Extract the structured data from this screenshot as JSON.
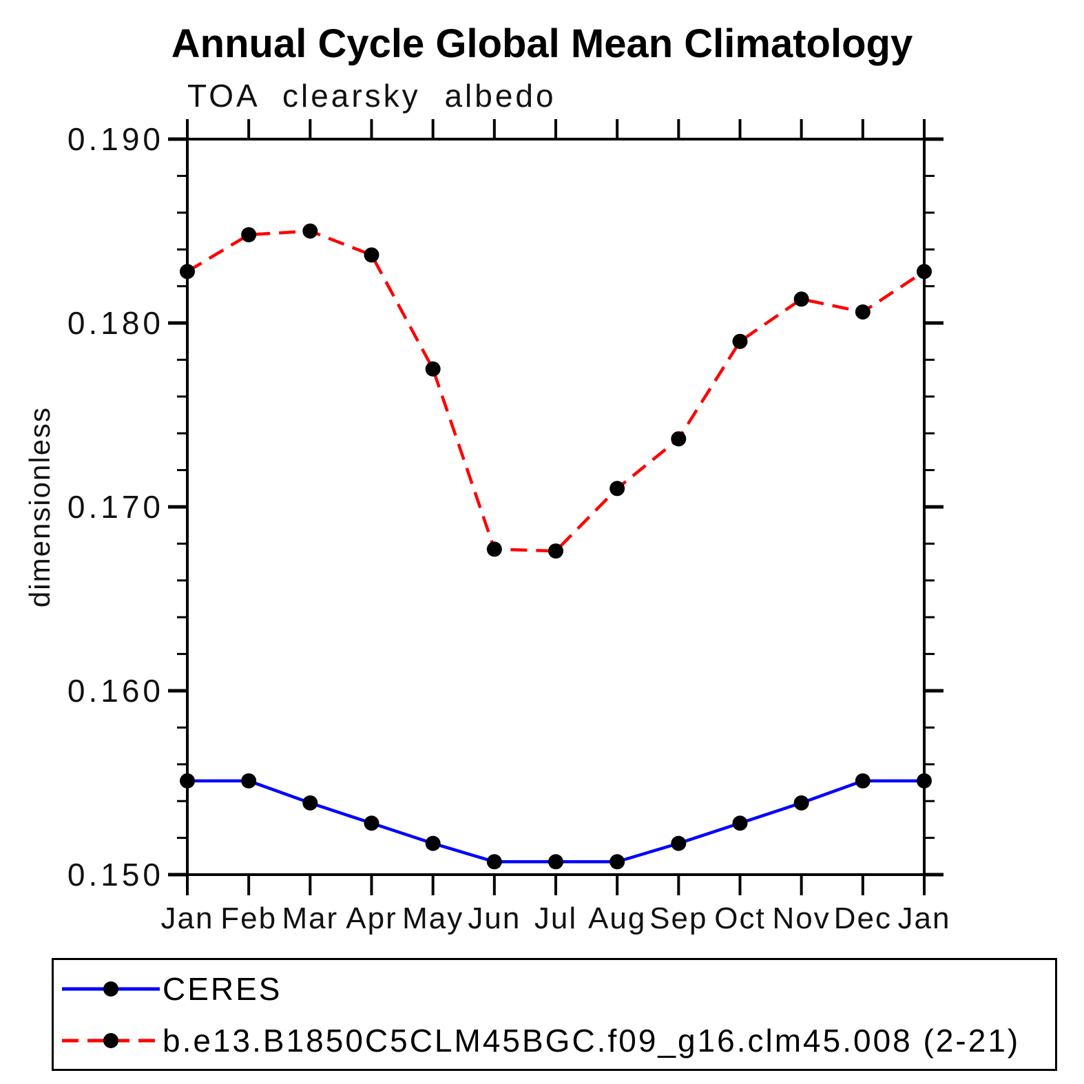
{
  "chart_data": {
    "type": "line",
    "title": "Annual Cycle Global Mean Climatology",
    "subtitle": "TOA clearsky albedo",
    "ylabel": "dimensionless",
    "xlabel": "",
    "categories": [
      "Jan",
      "Feb",
      "Mar",
      "Apr",
      "May",
      "Jun",
      "Jul",
      "Aug",
      "Sep",
      "Oct",
      "Nov",
      "Dec",
      "Jan"
    ],
    "ylim": [
      0.15,
      0.19
    ],
    "ytick_major": [
      0.15,
      0.16,
      0.17,
      0.18,
      0.19
    ],
    "ytick_minor_step": 0.002,
    "grid": false,
    "legend_position": "bottom",
    "marker": "circle",
    "marker_color": "#000000",
    "axis_color": "#000000",
    "series": [
      {
        "name": "CERES",
        "color": "#0000ff",
        "style": "solid",
        "values": [
          0.1551,
          0.1551,
          0.1539,
          0.1528,
          0.1517,
          0.1507,
          0.1507,
          0.1507,
          0.1517,
          0.1528,
          0.1539,
          0.1551,
          0.1551
        ]
      },
      {
        "name": "b.e13.B1850C5CLM45BGC.f09_g16.clm45.008 (2-21)",
        "color": "#ff0000",
        "style": "dashed",
        "values": [
          0.1828,
          0.1848,
          0.185,
          0.1837,
          0.1775,
          0.1677,
          0.1676,
          0.171,
          0.1737,
          0.179,
          0.1813,
          0.1806,
          0.1828
        ]
      }
    ]
  }
}
